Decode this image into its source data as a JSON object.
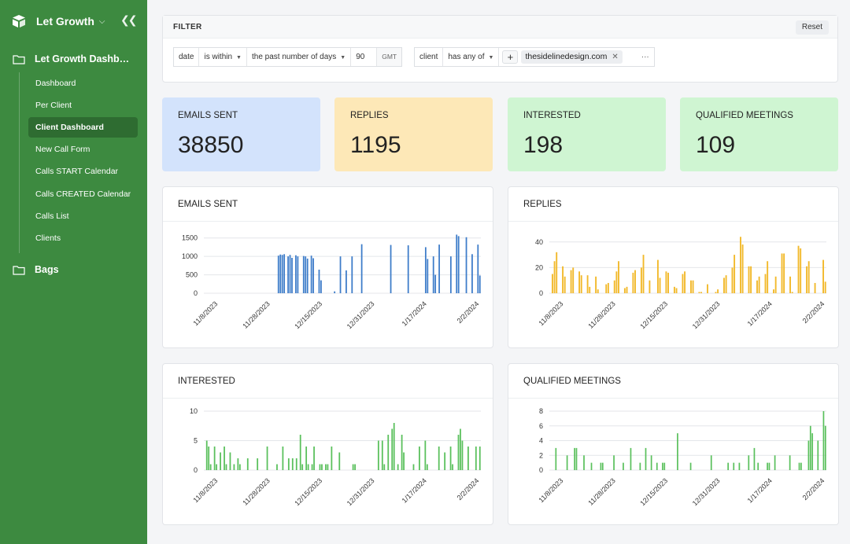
{
  "sidebar": {
    "brand": "Let Growth",
    "folders": [
      {
        "label": "Let Growth Dashboard"
      },
      {
        "label": "Bags"
      }
    ],
    "items": [
      {
        "label": "Dashboard"
      },
      {
        "label": "Per Client"
      },
      {
        "label": "Client Dashboard",
        "active": true
      },
      {
        "label": "New Call Form"
      },
      {
        "label": "Calls START Calendar"
      },
      {
        "label": "Calls CREATED Calendar"
      },
      {
        "label": "Calls List"
      },
      {
        "label": "Clients"
      }
    ]
  },
  "filter": {
    "title": "FILTER",
    "reset": "Reset",
    "date_field": "date",
    "date_op": "is within",
    "date_range": "the past number of days",
    "date_value": "90",
    "tz": "GMT",
    "client_field": "client",
    "client_op": "has any of",
    "client_value": "thesidelinedesign.com",
    "more": "···"
  },
  "kpis": [
    {
      "label": "EMAILS SENT",
      "value": "38850",
      "color": "#d3e3fc"
    },
    {
      "label": "REPLIES",
      "value": "1195",
      "color": "#fde8b7"
    },
    {
      "label": "INTERESTED",
      "value": "198",
      "color": "#cff5d2"
    },
    {
      "label": "QUALIFIED MEETINGS",
      "value": "109",
      "color": "#cff5d2"
    }
  ],
  "x_tick_labels": [
    "11/8/2023",
    "11/28/2023",
    "12/15/2023",
    "12/31/2023",
    "1/17/2024",
    "2/2/2024"
  ],
  "chart_data": [
    {
      "type": "bar",
      "title": "EMAILS SENT",
      "color": "#3d7cc9",
      "ylim": [
        0,
        1600
      ],
      "yticks": [
        0,
        500,
        1000,
        1500
      ],
      "values": [
        0,
        0,
        0,
        0,
        0,
        0,
        0,
        0,
        0,
        0,
        0,
        0,
        0,
        0,
        0,
        0,
        0,
        0,
        0,
        0,
        0,
        0,
        0,
        0,
        0,
        0,
        0,
        0,
        0,
        0,
        0,
        0,
        0,
        0,
        0,
        0,
        0,
        0,
        1020,
        1050,
        1040,
        1060,
        0,
        1000,
        1040,
        960,
        0,
        1030,
        1000,
        0,
        0,
        1010,
        1000,
        940,
        0,
        1020,
        950,
        0,
        0,
        640,
        350,
        0,
        0,
        0,
        0,
        0,
        0,
        50,
        0,
        0,
        1000,
        0,
        0,
        620,
        0,
        0,
        1000,
        0,
        0,
        0,
        0,
        1330,
        0,
        0,
        0,
        0,
        0,
        0,
        0,
        0,
        0,
        0,
        0,
        0,
        0,
        0,
        1310,
        0,
        0,
        0,
        0,
        0,
        0,
        0,
        0,
        1300,
        0,
        0,
        0,
        0,
        0,
        0,
        0,
        0,
        1250,
        930,
        0,
        0,
        1000,
        500,
        0,
        1320,
        0,
        0,
        0,
        0,
        0,
        1000,
        0,
        0,
        1590,
        1550,
        0,
        0,
        0,
        1520,
        0,
        0,
        1060,
        0,
        0,
        1320,
        480
      ]
    },
    {
      "type": "bar",
      "title": "REPLIES",
      "color": "#f2b92b",
      "ylim": [
        0,
        46
      ],
      "yticks": [
        0,
        20,
        40
      ],
      "values": [
        0,
        15,
        25,
        32,
        0,
        0,
        21,
        13,
        0,
        0,
        18,
        20,
        0,
        0,
        17,
        14,
        0,
        0,
        14,
        5,
        0,
        0,
        13,
        3,
        0,
        0,
        0,
        7,
        8,
        0,
        0,
        10,
        17,
        25,
        0,
        0,
        4,
        5,
        0,
        0,
        16,
        18,
        0,
        0,
        20,
        30,
        0,
        0,
        10,
        0,
        0,
        0,
        26,
        12,
        0,
        0,
        17,
        16,
        0,
        0,
        5,
        4,
        0,
        0,
        15,
        17,
        0,
        0,
        10,
        10,
        0,
        0,
        1,
        1,
        0,
        0,
        7,
        0,
        0,
        0,
        1,
        3,
        0,
        0,
        12,
        14,
        0,
        0,
        20,
        30,
        0,
        0,
        44,
        38,
        0,
        0,
        21,
        21,
        0,
        0,
        10,
        13,
        0,
        0,
        15,
        25,
        0,
        0,
        3,
        13,
        0,
        0,
        31,
        31,
        0,
        0,
        13,
        1,
        0,
        0,
        37,
        35,
        0,
        0,
        21,
        25,
        0,
        0,
        8,
        0,
        0,
        0,
        26,
        9
      ]
    },
    {
      "type": "bar",
      "title": "INTERESTED",
      "color": "#5ac05c",
      "ylim": [
        0,
        10
      ],
      "yticks": [
        0,
        5,
        10
      ],
      "values": [
        0,
        5,
        4,
        1,
        0,
        4,
        1,
        0,
        3,
        0,
        4,
        1,
        0,
        3,
        0,
        1,
        0,
        2,
        1,
        0,
        0,
        0,
        2,
        0,
        0,
        0,
        0,
        2,
        0,
        0,
        0,
        0,
        4,
        0,
        0,
        0,
        0,
        1,
        0,
        0,
        4,
        0,
        0,
        2,
        0,
        2,
        0,
        2,
        0,
        6,
        1,
        0,
        4,
        1,
        0,
        1,
        4,
        0,
        0,
        1,
        1,
        0,
        1,
        1,
        0,
        4,
        0,
        0,
        0,
        3,
        0,
        0,
        0,
        0,
        0,
        0,
        1,
        1,
        0,
        0,
        0,
        0,
        0,
        0,
        0,
        0,
        0,
        0,
        0,
        5,
        0,
        5,
        1,
        0,
        6,
        0,
        7,
        8,
        0,
        1,
        0,
        6,
        3,
        0,
        0,
        0,
        0,
        1,
        0,
        0,
        4,
        0,
        0,
        5,
        1,
        0,
        0,
        0,
        0,
        0,
        4,
        0,
        0,
        3,
        0,
        0,
        4,
        1,
        0,
        0,
        6,
        7,
        5,
        0,
        0,
        4,
        0,
        0,
        0,
        4,
        0,
        4
      ]
    },
    {
      "type": "bar",
      "title": "QUALIFIED MEETINGS",
      "color": "#5ac05c",
      "ylim": [
        0,
        8
      ],
      "yticks": [
        0,
        2,
        4,
        6,
        8
      ],
      "values": [
        0,
        0,
        0,
        3,
        0,
        0,
        0,
        0,
        0,
        2,
        0,
        0,
        0,
        3,
        3,
        0,
        0,
        0,
        2,
        0,
        0,
        0,
        1,
        0,
        0,
        0,
        0,
        1,
        1,
        0,
        0,
        0,
        0,
        0,
        2,
        0,
        0,
        0,
        0,
        1,
        0,
        0,
        0,
        3,
        0,
        0,
        0,
        0,
        1,
        0,
        0,
        3,
        0,
        0,
        2,
        0,
        0,
        1,
        0,
        0,
        1,
        1,
        0,
        0,
        0,
        0,
        0,
        0,
        5,
        0,
        0,
        0,
        0,
        0,
        0,
        1,
        0,
        0,
        0,
        0,
        0,
        0,
        0,
        0,
        0,
        0,
        2,
        0,
        0,
        0,
        0,
        0,
        0,
        0,
        0,
        1,
        0,
        0,
        1,
        0,
        0,
        1,
        0,
        0,
        0,
        0,
        2,
        0,
        0,
        3,
        0,
        1,
        0,
        0,
        0,
        0,
        1,
        1,
        0,
        0,
        2,
        0,
        0,
        0,
        0,
        0,
        0,
        0,
        2,
        0,
        0,
        0,
        0,
        1,
        1,
        0,
        0,
        0,
        4,
        6,
        5,
        0,
        0,
        4,
        0,
        0,
        8,
        6
      ]
    }
  ]
}
